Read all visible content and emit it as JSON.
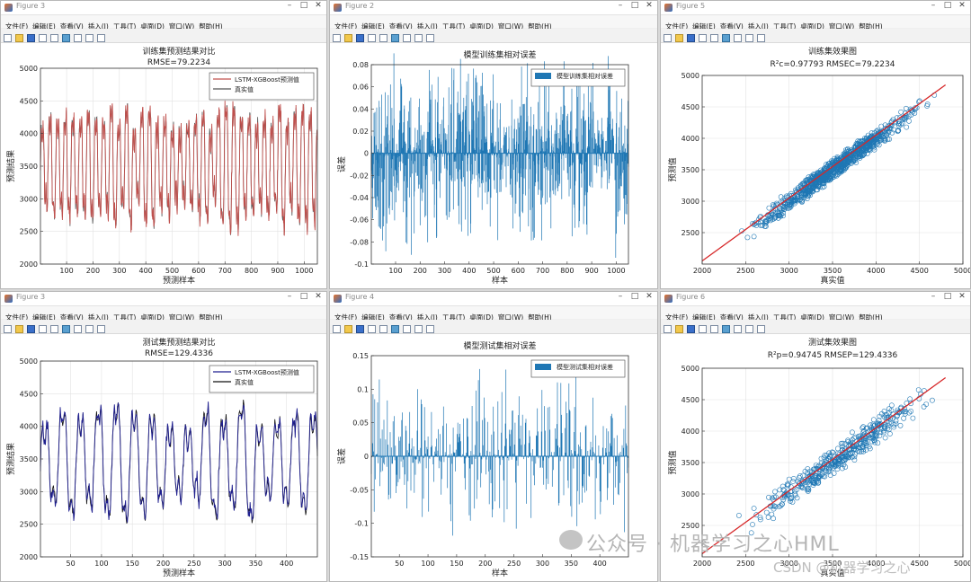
{
  "windows": [
    {
      "key": "w1",
      "title": "Figure 3",
      "menu": [
        "文件(F)",
        "编辑(E)",
        "查看(V)",
        "插入(I)",
        "工具(T)",
        "桌面(D)",
        "窗口(W)",
        "帮助(H)"
      ]
    },
    {
      "key": "w2",
      "title": "Figure 2",
      "menu": [
        "文件(F)",
        "编辑(E)",
        "查看(V)",
        "插入(I)",
        "工具(T)",
        "桌面(D)",
        "窗口(W)",
        "帮助(H)"
      ]
    },
    {
      "key": "w3",
      "title": "Figure 5",
      "menu": [
        "文件(F)",
        "编辑(E)",
        "查看(V)",
        "插入(I)",
        "工具(T)",
        "桌面(D)",
        "窗口(W)",
        "帮助(H)"
      ]
    },
    {
      "key": "w4",
      "title": "Figure 3",
      "menu": [
        "文件(F)",
        "编辑(E)",
        "查看(V)",
        "插入(I)",
        "工具(T)",
        "桌面(D)",
        "窗口(W)",
        "帮助(H)"
      ]
    },
    {
      "key": "w5",
      "title": "Figure 4",
      "menu": [
        "文件(F)",
        "编辑(E)",
        "查看(V)",
        "插入(I)",
        "工具(T)",
        "桌面(D)",
        "窗口(W)",
        "帮助(H)"
      ]
    },
    {
      "key": "w6",
      "title": "Figure 6",
      "menu": [
        "文件(F)",
        "编辑(E)",
        "查看(V)",
        "插入(I)",
        "工具(T)",
        "桌面(D)",
        "窗口(W)",
        "帮助(H)"
      ]
    }
  ],
  "colors": {
    "pred_train": "#c0504d",
    "true_line": "#555555",
    "pred_test": "#1f1f8f",
    "true_test": "#111111",
    "bar": "#1f77b4",
    "scatter": "#1f77b4",
    "fit": "#d62728"
  },
  "chart_data": [
    {
      "key": "c1",
      "type": "line",
      "title": "训练集预测结果对比",
      "subtitle": "RMSE=79.2234",
      "xlabel": "预测样本",
      "ylabel": "预测结果",
      "xlim": [
        1,
        1050
      ],
      "ylim": [
        2000,
        5000
      ],
      "xticks": [
        100,
        200,
        300,
        400,
        500,
        600,
        700,
        800,
        900,
        1000
      ],
      "yticks": [
        2000,
        2500,
        3000,
        3500,
        4000,
        4500,
        5000
      ],
      "grid": true,
      "legend_position": "top-right",
      "series": [
        {
          "name": "LSTM-XGBoost预测值",
          "color_key": "pred_train"
        },
        {
          "name": "真实值",
          "color_key": "true_line"
        }
      ],
      "shape": {
        "n": 1050,
        "period": 29,
        "base": 3500,
        "amp": 800,
        "spread": 1200
      }
    },
    {
      "key": "c2",
      "type": "bar",
      "title": "模型训练集相对误差",
      "xlabel": "样本",
      "ylabel": "误差",
      "xlim": [
        1,
        1050
      ],
      "ylim": [
        -0.1,
        0.08
      ],
      "xticks": [
        100,
        200,
        300,
        400,
        500,
        600,
        700,
        800,
        900,
        1000
      ],
      "yticks": [
        -0.1,
        -0.08,
        -0.06,
        -0.04,
        -0.02,
        0,
        0.02,
        0.04,
        0.06,
        0.08
      ],
      "legend_position": "top-right",
      "series": [
        {
          "name": "模型训练集相对误差",
          "color_key": "bar"
        }
      ],
      "shape": {
        "n": 1050,
        "spread": 0.075
      }
    },
    {
      "key": "c3",
      "type": "scatter",
      "title": "训练集效果图",
      "subtitle": "R²c=0.97793  RMSEC=79.2234",
      "xlabel": "真实值",
      "ylabel": "预测值",
      "xlim": [
        2000,
        5000
      ],
      "ylim": [
        2000,
        5000
      ],
      "xticks": [
        2000,
        2500,
        3000,
        3500,
        4000,
        4500,
        5000
      ],
      "yticks": [
        2500,
        3000,
        3500,
        4000,
        4500,
        5000
      ],
      "grid": true,
      "shape": {
        "n": 900,
        "min": 2300,
        "max": 4750,
        "noise": 110
      }
    },
    {
      "key": "c4",
      "type": "line",
      "title": "测试集预测结果对比",
      "subtitle": "RMSE=129.4336",
      "xlabel": "预测样本",
      "ylabel": "预测结果",
      "xlim": [
        1,
        450
      ],
      "ylim": [
        2000,
        5000
      ],
      "xticks": [
        50,
        100,
        150,
        200,
        250,
        300,
        350,
        400
      ],
      "yticks": [
        2000,
        2500,
        3000,
        3500,
        4000,
        4500,
        5000
      ],
      "grid": true,
      "legend_position": "top-right",
      "series": [
        {
          "name": "LSTM-XGBoost预测值",
          "color_key": "pred_test"
        },
        {
          "name": "真实值",
          "color_key": "true_test"
        }
      ],
      "shape": {
        "n": 450,
        "period": 29,
        "base": 3450,
        "amp": 750,
        "spread": 900
      }
    },
    {
      "key": "c5",
      "type": "bar",
      "title": "模型测试集相对误差",
      "xlabel": "样本",
      "ylabel": "误差",
      "xlim": [
        1,
        450
      ],
      "ylim": [
        -0.15,
        0.15
      ],
      "xticks": [
        50,
        100,
        150,
        200,
        250,
        300,
        350,
        400
      ],
      "yticks": [
        -0.15,
        -0.1,
        -0.05,
        0,
        0.05,
        0.1,
        0.15
      ],
      "legend_position": "top-right",
      "series": [
        {
          "name": "模型测试集相对误差",
          "color_key": "bar"
        }
      ],
      "shape": {
        "n": 450,
        "spread": 0.11
      }
    },
    {
      "key": "c6",
      "type": "scatter",
      "title": "测试集效果图",
      "subtitle": "R²p=0.94745  RMSEP=129.4336",
      "xlabel": "真实值",
      "ylabel": "预测值",
      "xlim": [
        2000,
        5000
      ],
      "ylim": [
        2000,
        5000
      ],
      "xticks": [
        2000,
        2500,
        3000,
        3500,
        4000,
        4500,
        5000
      ],
      "yticks": [
        2500,
        3000,
        3500,
        4000,
        4500,
        5000
      ],
      "grid": true,
      "shape": {
        "n": 420,
        "min": 2300,
        "max": 4900,
        "noise": 160
      }
    }
  ],
  "watermark": {
    "line1": "公众号 · 机器学习之心HML",
    "line2": "CSDN @机器学习之心"
  }
}
